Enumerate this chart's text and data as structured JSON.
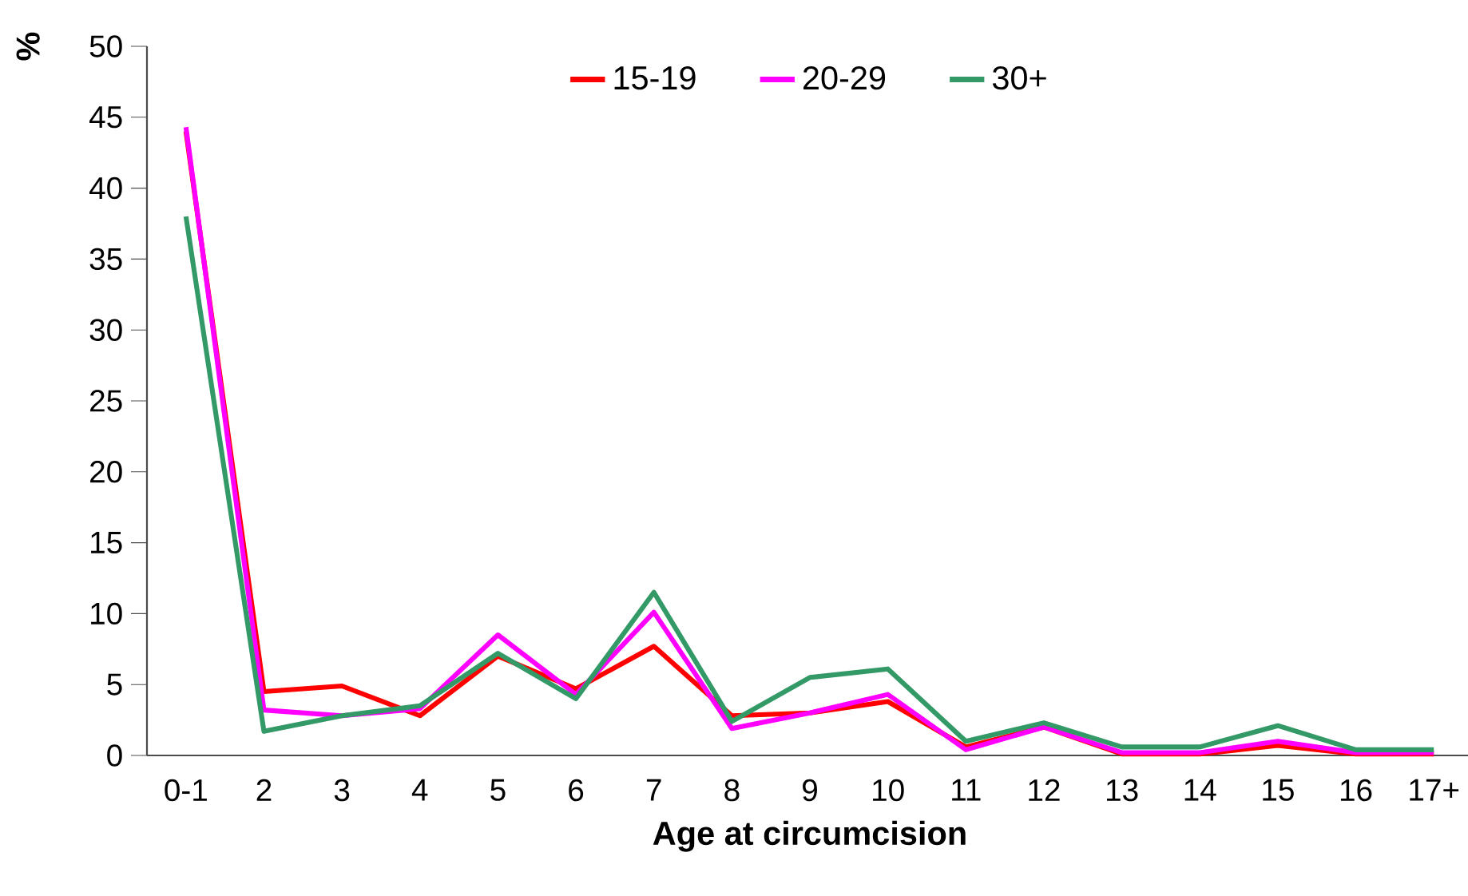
{
  "chart_data": {
    "type": "line",
    "xlabel": "Age at circumcision",
    "ylabel": "%",
    "categories": [
      "0-1",
      "2",
      "3",
      "4",
      "5",
      "6",
      "7",
      "8",
      "9",
      "10",
      "11",
      "12",
      "13",
      "14",
      "15",
      "16",
      "17+"
    ],
    "series": [
      {
        "name": "15-19",
        "color": "#ff0000",
        "values": [
          44,
          4.5,
          4.9,
          2.8,
          7.0,
          4.7,
          7.7,
          2.8,
          3.0,
          3.8,
          0.6,
          2.0,
          0.1,
          0.1,
          0.7,
          0.1,
          0.1
        ]
      },
      {
        "name": "20-29",
        "color": "#ff00ff",
        "values": [
          44.3,
          3.2,
          2.8,
          3.3,
          8.5,
          4.3,
          10.1,
          1.9,
          3.0,
          4.3,
          0.4,
          2.0,
          0.2,
          0.2,
          1.0,
          0.2,
          0.2
        ]
      },
      {
        "name": "30+",
        "color": "#339966",
        "values": [
          38,
          1.7,
          2.8,
          3.5,
          7.2,
          4.0,
          11.5,
          2.4,
          5.5,
          6.1,
          1.0,
          2.3,
          0.6,
          0.6,
          2.1,
          0.4,
          0.4
        ]
      }
    ],
    "ylim": [
      0,
      50
    ],
    "yticks": [
      0,
      5,
      10,
      15,
      20,
      25,
      30,
      35,
      40,
      45,
      50
    ],
    "legend": "top",
    "grid": false,
    "marker": "none",
    "line_style": "solid"
  }
}
